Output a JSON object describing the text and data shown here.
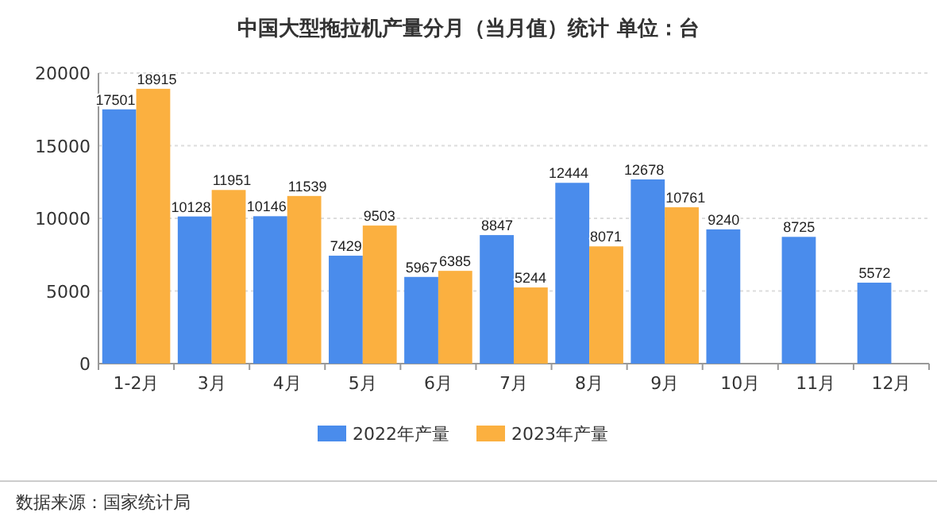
{
  "chart_data": {
    "type": "bar",
    "title": "中国大型拖拉机产量分月（当月值）统计  单位：台",
    "categories": [
      "1-2月",
      "3月",
      "4月",
      "5月",
      "6月",
      "7月",
      "8月",
      "9月",
      "10月",
      "11月",
      "12月"
    ],
    "series": [
      {
        "name": "2022年产量",
        "color": "#4a8cec",
        "values": [
          17501,
          10128,
          10146,
          7429,
          5967,
          8847,
          12444,
          12678,
          9240,
          8725,
          5572
        ]
      },
      {
        "name": "2023年产量",
        "color": "#fbb040",
        "values": [
          18915,
          11951,
          11539,
          9503,
          6385,
          5244,
          8071,
          10761,
          null,
          null,
          null
        ]
      }
    ],
    "ylim": [
      0,
      20000
    ],
    "yticks": [
      0,
      5000,
      10000,
      15000,
      20000
    ],
    "grid": "y",
    "legend": "bottom",
    "data_labels": true,
    "annotations": [
      "数据来源：国家统计局"
    ]
  }
}
